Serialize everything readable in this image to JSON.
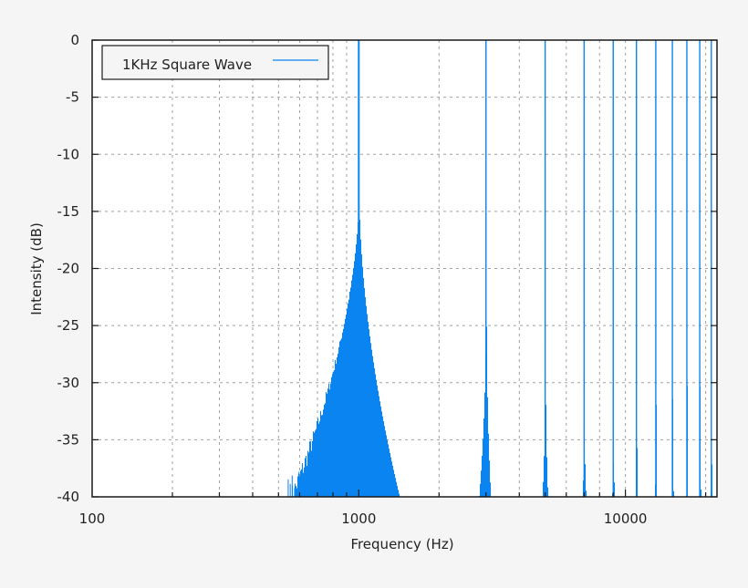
{
  "chart_data": {
    "type": "area",
    "title": "",
    "xlabel": "Frequency (Hz)",
    "ylabel": "Intensity (dB)",
    "xscale": "log",
    "xlim": [
      100,
      22050
    ],
    "ylim": [
      -40,
      0
    ],
    "grid": true,
    "legend_position": "top-left",
    "x_ticks": [
      {
        "value": 100,
        "label": "100"
      },
      {
        "value": 1000,
        "label": "1000"
      },
      {
        "value": 10000,
        "label": "10000"
      }
    ],
    "y_ticks": [
      {
        "value": 0,
        "label": "0"
      },
      {
        "value": -5,
        "label": "-5"
      },
      {
        "value": -10,
        "label": "-10"
      },
      {
        "value": -15,
        "label": "-15"
      },
      {
        "value": -20,
        "label": "-20"
      },
      {
        "value": -25,
        "label": "-25"
      },
      {
        "value": -30,
        "label": "-30"
      },
      {
        "value": -35,
        "label": "-35"
      },
      {
        "value": -40,
        "label": "-40"
      }
    ],
    "series": [
      {
        "name": "1KHz Square Wave",
        "color": "#0a84f0",
        "description": "Spectrum of a 1 kHz square wave: odd harmonics clip at 0 dB with spectral-leakage skirts",
        "peaks": [
          {
            "freq": 1000,
            "peak_db": 0,
            "skirt_db": -13.0,
            "skirt_low_hz": 560,
            "skirt_high_hz": 1420
          },
          {
            "freq": 3000,
            "peak_db": 0,
            "skirt_db": -17.5,
            "skirt_low_hz": 2820,
            "skirt_high_hz": 3120
          },
          {
            "freq": 5000,
            "peak_db": 0,
            "skirt_db": -24.0,
            "skirt_low_hz": 4870,
            "skirt_high_hz": 5110
          },
          {
            "freq": 7000,
            "peak_db": 0,
            "skirt_db": -31.0,
            "skirt_low_hz": 6880,
            "skirt_high_hz": 7110
          },
          {
            "freq": 9000,
            "peak_db": 0,
            "skirt_db": -33.5,
            "skirt_low_hz": 8900,
            "skirt_high_hz": 9100
          },
          {
            "freq": 11000,
            "peak_db": 0,
            "skirt_db": -29.0,
            "skirt_low_hz": 10880,
            "skirt_high_hz": 11100
          },
          {
            "freq": 13000,
            "peak_db": 0,
            "skirt_db": -26.5,
            "skirt_low_hz": 12880,
            "skirt_high_hz": 13100
          },
          {
            "freq": 15000,
            "peak_db": 0,
            "skirt_db": -25.0,
            "skirt_low_hz": 14880,
            "skirt_high_hz": 15090
          },
          {
            "freq": 17000,
            "peak_db": 0,
            "skirt_db": -27.0,
            "skirt_low_hz": 16880,
            "skirt_high_hz": 17080
          },
          {
            "freq": 19000,
            "peak_db": 0,
            "skirt_db": -22.5,
            "skirt_low_hz": 18880,
            "skirt_high_hz": 19080
          },
          {
            "freq": 21000,
            "peak_db": 0,
            "skirt_db": -33.5,
            "skirt_low_hz": 20900,
            "skirt_high_hz": 21100
          }
        ]
      }
    ]
  },
  "legend": {
    "label": "1KHz Square Wave",
    "line_color": "#0a84f0"
  },
  "colors": {
    "background": "#f5f5f5",
    "plot_background": "#ffffff",
    "grid": "#a0a0a0",
    "axis": "#1a1a1a",
    "series": "#0a84f0"
  }
}
